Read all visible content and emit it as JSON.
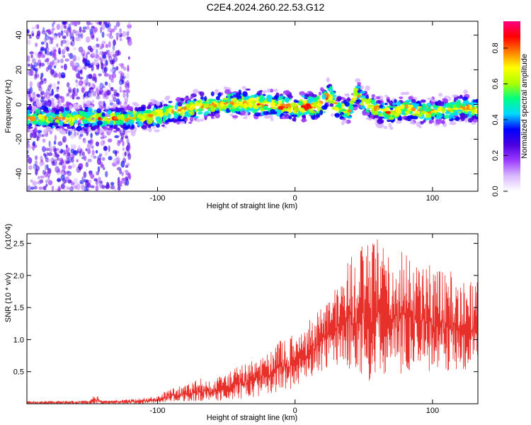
{
  "title": "C2E4.2024.260.22.53.G12",
  "chart_data": [
    {
      "type": "heatmap",
      "xlabel": "Height of straight line (km)",
      "ylabel": "Frequency (Hz)",
      "xlim": [
        -195,
        133
      ],
      "ylim": [
        -50,
        48
      ],
      "xticks": [
        -100,
        0,
        100
      ],
      "yticks": [
        -40,
        -20,
        0,
        20,
        40
      ],
      "colorbar": {
        "label": "Normalized spectral amplitude",
        "range": [
          0,
          0.95
        ],
        "ticks": [
          0.0,
          0.2,
          0.4,
          0.6,
          0.8
        ],
        "colors": [
          "#ffffff",
          "#d9b8ff",
          "#9b3bff",
          "#4a00e0",
          "#0000ff",
          "#00d8ff",
          "#00ff80",
          "#b0ff00",
          "#ffff00",
          "#ff8000",
          "#ff0000",
          "#ff0080"
        ]
      },
      "ridge": {
        "x": [
          -195,
          -170,
          -140,
          -120,
          -100,
          -80,
          -60,
          -40,
          -20,
          0,
          10,
          20,
          25,
          30,
          40,
          45,
          50,
          60,
          70,
          80,
          90,
          100,
          110,
          120,
          133
        ],
        "y": [
          -8,
          -8,
          -8,
          -8,
          -6,
          -3,
          0,
          1,
          0,
          -2,
          -1,
          0,
          7,
          -2,
          -3,
          8,
          1,
          -3,
          -5,
          -2,
          -4,
          -4,
          -3,
          -2,
          -3
        ]
      }
    },
    {
      "type": "line",
      "xlabel": "Height of straight line (km)",
      "ylabel": "SNR (10 * v/v)",
      "multiplier": "(x10^4)",
      "xlim": [
        -195,
        133
      ],
      "ylim": [
        0,
        2.65
      ],
      "xticks": [
        -100,
        0,
        100
      ],
      "yticks": [
        0.5,
        1.0,
        1.5,
        2.0,
        2.5
      ],
      "color": "#e8302b",
      "envelope": {
        "x": [
          -195,
          -150,
          -145,
          -140,
          -120,
          -100,
          -90,
          -80,
          -70,
          -60,
          -50,
          -40,
          -30,
          -20,
          -10,
          0,
          10,
          20,
          30,
          40,
          50,
          60,
          70,
          80,
          90,
          100,
          110,
          120,
          133
        ],
        "low": [
          0,
          0,
          0,
          0,
          0,
          0.01,
          0.02,
          0.03,
          0.03,
          0.04,
          0.05,
          0.06,
          0.1,
          0.15,
          0.2,
          0.25,
          0.4,
          0.5,
          0.6,
          0.5,
          0.4,
          0.3,
          0.4,
          0.5,
          0.5,
          0.5,
          0.5,
          0.5,
          0.6
        ],
        "high": [
          0.04,
          0.05,
          0.15,
          0.05,
          0.07,
          0.12,
          0.25,
          0.3,
          0.4,
          0.35,
          0.5,
          0.6,
          0.7,
          0.8,
          1.0,
          1.1,
          1.3,
          1.6,
          1.9,
          2.3,
          2.5,
          2.6,
          2.3,
          2.4,
          2.3,
          2.2,
          2.1,
          2.0,
          1.9
        ]
      }
    }
  ]
}
